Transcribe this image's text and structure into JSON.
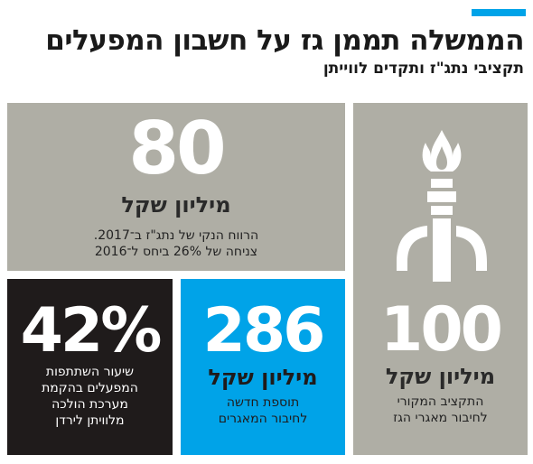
{
  "header": {
    "title": "הממשלה תממן גז על חשבון המפעלים",
    "subtitle": "תקציבי נתג\"ז ותקדים לווייתן"
  },
  "colors": {
    "accent": "#00a3e8",
    "gray_panel": "#afaea5",
    "dark_panel": "#1f1b1b",
    "blue_panel": "#00a3e8"
  },
  "panels": {
    "net_profit": {
      "number": "80",
      "unit": "מיליון שקל",
      "desc_line1": "הרווח הנקי של נתג\"ז ב־2017.",
      "desc_line2": "צניחה של 26% ביחס ל־2016"
    },
    "original_budget": {
      "icon": "gas-flame-pipe-icon",
      "number": "100",
      "unit": "מיליון שקל",
      "desc_line1": "התקציב המקורי",
      "desc_line2": "לחיבור מאגרי הגז"
    },
    "new_addition": {
      "number": "286",
      "unit": "מיליון שקל",
      "desc_line1": "תוספת חדשה",
      "desc_line2": "לחיבור המאגרים"
    },
    "factories_share": {
      "number": "42%",
      "desc_line1": "שיעור השתתפות",
      "desc_line2": "המפעלים בהקמת",
      "desc_line3": "מערכת הולכה",
      "desc_line4": "מלוויתן לירדן"
    }
  }
}
